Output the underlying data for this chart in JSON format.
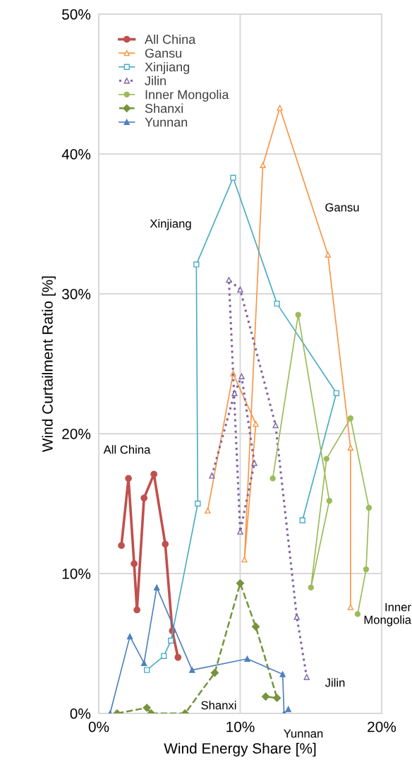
{
  "chart_data": {
    "type": "line",
    "xlabel": "Wind Energy Share [%]",
    "ylabel": "Wind Curtailment Ratio [%]",
    "xlim": [
      0,
      20
    ],
    "xticks": [
      {
        "value": 0,
        "label": "0%"
      },
      {
        "value": 10,
        "label": "10%"
      },
      {
        "value": 20,
        "label": "20%"
      }
    ],
    "ylim": [
      0,
      50
    ],
    "yticks": [
      {
        "value": 0,
        "label": "0%"
      },
      {
        "value": 10,
        "label": "10%"
      },
      {
        "value": 20,
        "label": "20%"
      },
      {
        "value": 30,
        "label": "30%"
      },
      {
        "value": 40,
        "label": "40%"
      },
      {
        "value": 50,
        "label": "50%"
      }
    ],
    "grid": true,
    "legend": "top left",
    "series": [
      {
        "name": "All China",
        "color": "#c0504d",
        "marker": "circle",
        "line_style": "solid",
        "x": [
          1.6,
          2.1,
          2.5,
          2.7,
          3.2,
          3.9,
          4.7,
          5.2,
          5.6
        ],
        "values": [
          12.0,
          16.8,
          10.7,
          7.4,
          15.4,
          17.1,
          12.1,
          5.9,
          4.0
        ]
      },
      {
        "name": "Gansu",
        "color": "#f79646",
        "marker": "triangle",
        "line_style": "solid",
        "x": [
          7.7,
          9.5,
          11.1,
          10.3,
          11.6,
          12.8,
          16.2,
          17.8,
          17.8
        ],
        "values": [
          14.5,
          24.3,
          20.7,
          11.0,
          39.2,
          43.3,
          32.8,
          19.0,
          7.6
        ]
      },
      {
        "name": "Xinjiang",
        "color": "#4bacc6",
        "marker": "square",
        "line_style": "solid",
        "x": [
          3.4,
          4.6,
          5.1,
          7.0,
          6.9,
          9.5,
          12.6,
          16.8,
          14.4
        ],
        "values": [
          3.1,
          4.1,
          5.2,
          15.0,
          32.1,
          38.3,
          29.3,
          22.9,
          13.8
        ]
      },
      {
        "name": "Jilin",
        "color": "#8064a2",
        "marker": "triangle",
        "line_style": "dotted",
        "x": [
          8.0,
          9.6,
          10.1,
          11.0,
          10.0,
          9.2,
          10.0,
          12.5,
          14.0,
          14.7
        ],
        "values": [
          17.0,
          22.9,
          24.1,
          17.9,
          13.0,
          31.0,
          30.3,
          20.6,
          6.9,
          2.6
        ]
      },
      {
        "name": "Inner Mongolia",
        "color": "#9bbb59",
        "marker": "circle",
        "line_style": "solid",
        "x": [
          12.3,
          14.1,
          16.3,
          15.0,
          16.1,
          17.8,
          19.1,
          18.9,
          18.3
        ],
        "values": [
          16.8,
          28.5,
          15.2,
          9.0,
          18.2,
          21.1,
          14.7,
          10.3,
          7.1
        ]
      },
      {
        "name": "Shanxi",
        "color": "#77933c",
        "marker": "diamond",
        "line_style": "dashed",
        "x": [
          1.3,
          3.4,
          3.7,
          6.1,
          8.2,
          10.0,
          11.1,
          12.6,
          11.8
        ],
        "values": [
          0,
          0.4,
          0,
          0,
          2.9,
          9.3,
          6.2,
          1.1,
          1.2
        ]
      },
      {
        "name": "Yunnan",
        "color": "#4f81bd",
        "marker": "triangle",
        "line_style": "solid",
        "x": [
          0.8,
          2.2,
          3.2,
          4.1,
          6.6,
          10.5,
          13.0,
          13.1,
          13.4
        ],
        "values": [
          0,
          5.5,
          3.6,
          9.0,
          3.1,
          3.9,
          2.8,
          0,
          0.3
        ]
      }
    ],
    "annotations": [
      "Xinjiang",
      "Gansu",
      "All China",
      "Inner\nMongolia",
      "Jilin",
      "Shanxi",
      "Yunnan"
    ]
  }
}
